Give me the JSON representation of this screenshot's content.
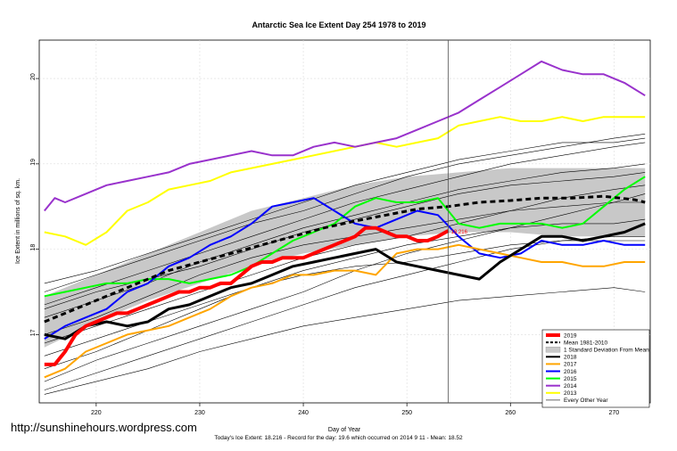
{
  "chart_data": {
    "type": "line",
    "title": "Antarctic Sea Ice Extent Day 254 1978 to 2019",
    "xlabel": "Day of Year",
    "ylabel": "Ice Extent in millions of sq. km.",
    "xlim": [
      214.5,
      273.5
    ],
    "ylim": [
      16.2,
      20.45
    ],
    "x_ticks": [
      220,
      230,
      240,
      250,
      260,
      270
    ],
    "y_ticks": [
      17,
      18,
      19,
      20
    ],
    "current_day_marker": 254,
    "current_value_label": "18.216",
    "legend_position": "bottom-right",
    "std_band": {
      "name": "1 Standard Deviation From Mean",
      "color": "#c8c8c8",
      "x": [
        215,
        220,
        225,
        230,
        235,
        240,
        245,
        250,
        255,
        260,
        265,
        270,
        273
      ],
      "lower": [
        16.85,
        17.15,
        17.4,
        17.6,
        17.8,
        17.95,
        18.05,
        18.15,
        18.2,
        18.2,
        18.15,
        18.15,
        18.15
      ],
      "upper": [
        17.45,
        17.7,
        17.95,
        18.2,
        18.45,
        18.6,
        18.75,
        18.85,
        18.9,
        18.95,
        18.95,
        18.95,
        18.95
      ]
    },
    "series": [
      {
        "name": "2019",
        "color": "#ff0000",
        "width": 4,
        "x": [
          215,
          216,
          217,
          218,
          219,
          220,
          221,
          222,
          223,
          224,
          225,
          226,
          227,
          228,
          229,
          230,
          231,
          232,
          233,
          234,
          235,
          236,
          237,
          238,
          239,
          240,
          241,
          242,
          243,
          244,
          245,
          246,
          247,
          248,
          249,
          250,
          251,
          252,
          253,
          254
        ],
        "values": [
          16.65,
          16.65,
          16.8,
          17.0,
          17.1,
          17.15,
          17.2,
          17.25,
          17.25,
          17.3,
          17.35,
          17.4,
          17.45,
          17.5,
          17.5,
          17.55,
          17.55,
          17.6,
          17.6,
          17.7,
          17.8,
          17.85,
          17.85,
          17.9,
          17.9,
          17.9,
          17.95,
          18.0,
          18.05,
          18.1,
          18.15,
          18.25,
          18.25,
          18.2,
          18.15,
          18.15,
          18.1,
          18.1,
          18.15,
          18.216
        ]
      },
      {
        "name": "Mean 1981-2010",
        "color": "#000000",
        "width": 3,
        "dash": "6,4",
        "x": [
          215,
          218,
          221,
          224,
          227,
          230,
          233,
          236,
          239,
          242,
          245,
          248,
          251,
          254,
          257,
          260,
          263,
          266,
          269,
          272,
          273
        ],
        "values": [
          17.15,
          17.3,
          17.45,
          17.6,
          17.75,
          17.85,
          17.95,
          18.05,
          18.15,
          18.25,
          18.33,
          18.4,
          18.47,
          18.5,
          18.55,
          18.57,
          18.6,
          18.6,
          18.62,
          18.58,
          18.55
        ]
      },
      {
        "name": "2018",
        "color": "#000000",
        "width": 3,
        "x": [
          215,
          217,
          219,
          221,
          223,
          225,
          227,
          229,
          231,
          233,
          235,
          237,
          239,
          241,
          243,
          245,
          247,
          249,
          251,
          253,
          255,
          257,
          259,
          261,
          263,
          265,
          267,
          269,
          271,
          273
        ],
        "values": [
          17.0,
          16.95,
          17.1,
          17.15,
          17.1,
          17.15,
          17.3,
          17.35,
          17.45,
          17.55,
          17.6,
          17.7,
          17.8,
          17.85,
          17.9,
          17.95,
          18.0,
          17.85,
          17.8,
          17.75,
          17.7,
          17.65,
          17.85,
          18.0,
          18.15,
          18.15,
          18.1,
          18.15,
          18.2,
          18.3
        ]
      },
      {
        "name": "2017",
        "color": "#ffa500",
        "width": 2,
        "x": [
          215,
          217,
          219,
          221,
          223,
          225,
          227,
          229,
          231,
          233,
          235,
          237,
          239,
          241,
          243,
          245,
          247,
          249,
          251,
          253,
          255,
          257,
          259,
          261,
          263,
          265,
          267,
          269,
          271,
          273
        ],
        "values": [
          16.5,
          16.6,
          16.8,
          16.9,
          17.0,
          17.05,
          17.1,
          17.2,
          17.3,
          17.45,
          17.55,
          17.6,
          17.7,
          17.7,
          17.75,
          17.75,
          17.7,
          17.95,
          18.0,
          18.0,
          18.05,
          18.0,
          17.95,
          17.9,
          17.85,
          17.85,
          17.8,
          17.8,
          17.85,
          17.85
        ]
      },
      {
        "name": "2016",
        "color": "#0000ff",
        "width": 2,
        "x": [
          215,
          217,
          219,
          221,
          223,
          225,
          227,
          229,
          231,
          233,
          235,
          237,
          239,
          241,
          243,
          245,
          247,
          249,
          251,
          253,
          255,
          257,
          259,
          261,
          263,
          265,
          267,
          269,
          271,
          273
        ],
        "values": [
          16.95,
          17.1,
          17.2,
          17.3,
          17.5,
          17.6,
          17.8,
          17.9,
          18.05,
          18.15,
          18.3,
          18.5,
          18.55,
          18.6,
          18.45,
          18.3,
          18.25,
          18.35,
          18.45,
          18.4,
          18.15,
          17.95,
          17.9,
          17.95,
          18.1,
          18.05,
          18.05,
          18.1,
          18.05,
          18.05
        ]
      },
      {
        "name": "2015",
        "color": "#00ff00",
        "width": 2,
        "x": [
          215,
          217,
          219,
          221,
          223,
          225,
          227,
          229,
          231,
          233,
          235,
          237,
          239,
          241,
          243,
          245,
          247,
          249,
          251,
          253,
          255,
          257,
          259,
          261,
          263,
          265,
          267,
          269,
          271,
          273
        ],
        "values": [
          17.45,
          17.5,
          17.55,
          17.6,
          17.6,
          17.65,
          17.65,
          17.6,
          17.65,
          17.7,
          17.8,
          17.95,
          18.1,
          18.2,
          18.3,
          18.5,
          18.6,
          18.55,
          18.55,
          18.6,
          18.3,
          18.25,
          18.3,
          18.3,
          18.3,
          18.25,
          18.3,
          18.5,
          18.7,
          18.85
        ]
      },
      {
        "name": "2014",
        "color": "#9932cc",
        "width": 2,
        "x": [
          215,
          216,
          217,
          219,
          221,
          223,
          225,
          227,
          229,
          231,
          233,
          235,
          237,
          239,
          241,
          243,
          245,
          247,
          249,
          251,
          253,
          255,
          257,
          259,
          261,
          263,
          265,
          267,
          269,
          271,
          273
        ],
        "values": [
          18.45,
          18.6,
          18.55,
          18.65,
          18.75,
          18.8,
          18.85,
          18.9,
          19.0,
          19.05,
          19.1,
          19.15,
          19.1,
          19.1,
          19.2,
          19.25,
          19.2,
          19.25,
          19.3,
          19.4,
          19.5,
          19.6,
          19.75,
          19.9,
          20.05,
          20.2,
          20.1,
          20.05,
          20.05,
          19.95,
          19.8
        ]
      },
      {
        "name": "2013",
        "color": "#ffff00",
        "width": 2,
        "x": [
          215,
          217,
          219,
          221,
          223,
          225,
          227,
          229,
          231,
          233,
          235,
          237,
          239,
          241,
          243,
          245,
          247,
          249,
          251,
          253,
          255,
          257,
          259,
          261,
          263,
          265,
          267,
          269,
          271,
          273
        ],
        "values": [
          18.2,
          18.15,
          18.05,
          18.2,
          18.45,
          18.55,
          18.7,
          18.75,
          18.8,
          18.9,
          18.95,
          19.0,
          19.05,
          19.1,
          19.15,
          19.2,
          19.25,
          19.2,
          19.25,
          19.3,
          19.45,
          19.5,
          19.55,
          19.5,
          19.5,
          19.55,
          19.5,
          19.55,
          19.55,
          19.55
        ]
      }
    ],
    "other_years": {
      "name": "Every Other Year",
      "color": "#000000",
      "lines": [
        [
          16.45,
          16.7,
          16.9,
          17.1,
          17.3,
          17.5,
          17.75,
          17.95,
          18.1,
          18.25,
          18.4,
          18.55,
          18.65
        ],
        [
          16.9,
          17.1,
          17.3,
          17.5,
          17.7,
          17.9,
          18.05,
          18.15,
          18.3,
          18.45,
          18.6,
          18.7,
          18.75
        ],
        [
          17.2,
          17.4,
          17.6,
          17.85,
          18.05,
          18.25,
          18.4,
          18.55,
          18.7,
          18.8,
          18.9,
          18.95,
          19.0
        ],
        [
          17.35,
          17.55,
          17.75,
          17.95,
          18.15,
          18.35,
          18.55,
          18.7,
          18.85,
          19.0,
          19.1,
          19.2,
          19.25
        ],
        [
          16.35,
          16.55,
          16.75,
          16.95,
          17.15,
          17.35,
          17.55,
          17.7,
          17.85,
          18.0,
          18.1,
          18.15,
          18.15
        ],
        [
          17.6,
          17.75,
          17.95,
          18.15,
          18.35,
          18.55,
          18.75,
          18.9,
          19.05,
          19.15,
          19.25,
          19.25,
          19.3
        ],
        [
          16.3,
          16.45,
          16.6,
          16.8,
          16.95,
          17.1,
          17.2,
          17.3,
          17.4,
          17.45,
          17.5,
          17.55,
          17.5
        ],
        [
          17.0,
          17.2,
          17.45,
          17.7,
          17.9,
          18.05,
          18.15,
          18.25,
          18.35,
          18.45,
          18.5,
          18.55,
          18.55
        ],
        [
          16.6,
          16.8,
          17.05,
          17.3,
          17.55,
          17.75,
          17.9,
          18.05,
          18.15,
          18.25,
          18.3,
          18.3,
          18.35
        ],
        [
          17.3,
          17.5,
          17.65,
          17.8,
          18.0,
          18.2,
          18.35,
          18.5,
          18.65,
          18.75,
          18.8,
          18.85,
          18.9
        ],
        [
          17.5,
          17.7,
          17.9,
          18.1,
          18.3,
          18.45,
          18.65,
          18.85,
          19.0,
          19.1,
          19.2,
          19.3,
          19.35
        ],
        [
          16.75,
          16.95,
          17.15,
          17.35,
          17.55,
          17.7,
          17.8,
          17.85,
          17.95,
          18.05,
          18.1,
          18.1,
          18.1
        ]
      ],
      "x": [
        215,
        220,
        225,
        230,
        235,
        240,
        245,
        250,
        255,
        260,
        265,
        270,
        273
      ]
    },
    "legend": [
      {
        "label": "2019",
        "color": "#ff0000",
        "kind": "line",
        "width": 4
      },
      {
        "label": "Mean 1981-2010",
        "color": "#000000",
        "kind": "dash",
        "width": 2
      },
      {
        "label": "1 Standard Deviation From Mean",
        "color": "#c8c8c8",
        "kind": "box",
        "width": 0
      },
      {
        "label": "2018",
        "color": "#000000",
        "kind": "line",
        "width": 2
      },
      {
        "label": "2017",
        "color": "#ffa500",
        "kind": "line",
        "width": 2
      },
      {
        "label": "2016",
        "color": "#0000ff",
        "kind": "line",
        "width": 2
      },
      {
        "label": "2015",
        "color": "#00ff00",
        "kind": "line",
        "width": 2
      },
      {
        "label": "2014",
        "color": "#9932cc",
        "kind": "line",
        "width": 2
      },
      {
        "label": "2013",
        "color": "#ffff00",
        "kind": "line",
        "width": 2
      },
      {
        "label": "Every Other Year",
        "color": "#000000",
        "kind": "line",
        "width": 0.6
      }
    ]
  },
  "watermark": "http://sunshinehours.wordpress.com",
  "footnote": "Today's Ice Extent: 18.216  - Record for the day: 19.6 which occurred on 2014 9 11  - Mean: 18.52"
}
